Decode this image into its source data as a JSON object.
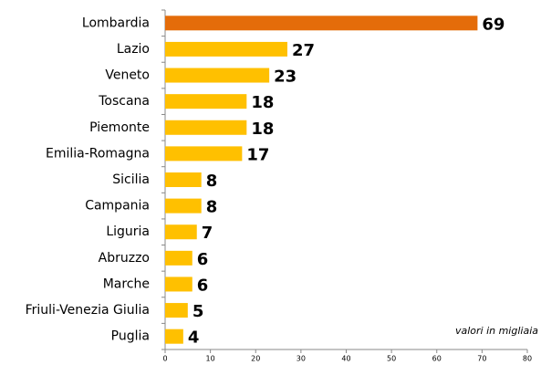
{
  "chart_data": {
    "type": "hbar",
    "categories": [
      "Lombardia",
      "Lazio",
      "Veneto",
      "Toscana",
      "Piemonte",
      "Emilia-Romagna",
      "Sicilia",
      "Campania",
      "Liguria",
      "Abruzzo",
      "Marche",
      "Friuli-Venezia Giulia",
      "Puglia"
    ],
    "values": [
      69,
      27,
      23,
      18,
      18,
      17,
      8,
      8,
      7,
      6,
      6,
      5,
      4
    ],
    "colors": [
      "#e46c0a",
      "#ffc000",
      "#ffc000",
      "#ffc000",
      "#ffc000",
      "#ffc000",
      "#ffc000",
      "#ffc000",
      "#ffc000",
      "#ffc000",
      "#ffc000",
      "#ffc000",
      "#ffc000"
    ],
    "xlim": [
      0,
      80
    ],
    "xticks": [
      0,
      10,
      20,
      30,
      40,
      50,
      60,
      70,
      80
    ],
    "grid": false,
    "annotation": "valori in migliaia"
  }
}
